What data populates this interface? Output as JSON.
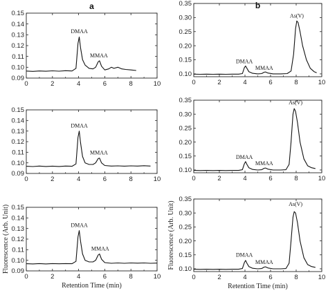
{
  "chart_data": [
    {
      "id": "a1",
      "type": "line",
      "column_label": "a",
      "xlabel": "",
      "ylabel": "",
      "xlim": [
        0,
        10
      ],
      "ylim": [
        0.09,
        0.15
      ],
      "xticks": [
        0,
        2,
        4,
        6,
        8,
        10
      ],
      "yticks": [
        0.09,
        0.1,
        0.11,
        0.12,
        0.13,
        0.14,
        0.15
      ],
      "ytick_labels": [
        "0.09",
        "0.10",
        "0.11",
        "0.12",
        "0.13",
        "0.14",
        "0.15"
      ],
      "series": [
        {
          "x": [
            0,
            0.5,
            1.0,
            1.5,
            2.0,
            2.5,
            3.0,
            3.5,
            3.8,
            3.95,
            4.05,
            4.15,
            4.3,
            4.5,
            4.8,
            5.1,
            5.3,
            5.5,
            5.6,
            5.75,
            6.0,
            6.3,
            6.5,
            6.7,
            7.0,
            7.3,
            7.6,
            8.0,
            8.4
          ],
          "y": [
            0.0965,
            0.0962,
            0.0966,
            0.0963,
            0.0967,
            0.0964,
            0.0968,
            0.0966,
            0.099,
            0.122,
            0.128,
            0.118,
            0.107,
            0.102,
            0.099,
            0.0985,
            0.1,
            0.105,
            0.106,
            0.101,
            0.0975,
            0.0985,
            0.1,
            0.099,
            0.1,
            0.0985,
            0.098,
            0.0975,
            0.097
          ]
        }
      ],
      "annotations": [
        {
          "text": "DMAA",
          "x": 4.05,
          "y": 0.1315
        },
        {
          "text": "MMAA",
          "x": 5.55,
          "y": 0.1093
        }
      ]
    },
    {
      "id": "a2",
      "type": "line",
      "column_label": "",
      "xlabel": "",
      "ylabel": "",
      "xlim": [
        0,
        10
      ],
      "ylim": [
        0.09,
        0.15
      ],
      "xticks": [
        0,
        2,
        4,
        6,
        8,
        10
      ],
      "yticks": [
        0.09,
        0.1,
        0.11,
        0.12,
        0.13,
        0.14,
        0.15
      ],
      "ytick_labels": [
        "0.09",
        "0.10",
        "0.11",
        "0.12",
        "0.13",
        "0.14",
        "0.15"
      ],
      "series": [
        {
          "x": [
            0,
            0.5,
            1.0,
            1.5,
            2.0,
            2.5,
            3.0,
            3.5,
            3.8,
            3.95,
            4.05,
            4.15,
            4.3,
            4.5,
            4.8,
            5.1,
            5.3,
            5.5,
            5.6,
            5.75,
            6.0,
            6.5,
            7.0,
            7.5,
            8.0,
            8.5,
            9.0,
            9.5
          ],
          "y": [
            0.0968,
            0.0965,
            0.097,
            0.0966,
            0.0969,
            0.0966,
            0.097,
            0.0968,
            0.099,
            0.124,
            0.13,
            0.119,
            0.106,
            0.1,
            0.0985,
            0.0985,
            0.1,
            0.104,
            0.1045,
            0.1,
            0.0975,
            0.097,
            0.0972,
            0.0969,
            0.0972,
            0.097,
            0.0973,
            0.097
          ]
        }
      ],
      "annotations": [
        {
          "text": "DMAA",
          "x": 4.05,
          "y": 0.1335
        },
        {
          "text": "MMAA",
          "x": 5.55,
          "y": 0.108
        }
      ]
    },
    {
      "id": "a3",
      "type": "line",
      "column_label": "",
      "xlabel": "Retention Time (min)",
      "ylabel": "Fluorescence (Arb. Unit)",
      "xlim": [
        0,
        10
      ],
      "ylim": [
        0.09,
        0.15
      ],
      "xticks": [
        0,
        2,
        4,
        6,
        8,
        10
      ],
      "yticks": [
        0.09,
        0.1,
        0.11,
        0.12,
        0.13,
        0.14,
        0.15
      ],
      "ytick_labels": [
        "0.09",
        "0.10",
        "0.11",
        "0.12",
        "0.13",
        "0.14",
        "0.15"
      ],
      "series": [
        {
          "x": [
            0,
            0.5,
            1.0,
            1.5,
            2.0,
            2.5,
            3.0,
            3.5,
            3.8,
            3.95,
            4.05,
            4.15,
            4.3,
            4.5,
            4.8,
            5.1,
            5.3,
            5.5,
            5.6,
            5.75,
            6.0,
            6.5,
            7.0,
            7.5,
            8.0,
            8.5,
            9.0,
            9.5,
            10.0
          ],
          "y": [
            0.0968,
            0.0966,
            0.0969,
            0.0966,
            0.0969,
            0.0967,
            0.0969,
            0.0968,
            0.099,
            0.122,
            0.128,
            0.118,
            0.106,
            0.1,
            0.0985,
            0.0985,
            0.1,
            0.105,
            0.106,
            0.101,
            0.0978,
            0.0972,
            0.0975,
            0.0972,
            0.0975,
            0.0973,
            0.0975,
            0.0972,
            0.0974
          ]
        }
      ],
      "annotations": [
        {
          "text": "DMAA",
          "x": 4.05,
          "y": 0.1315
        },
        {
          "text": "MMAA",
          "x": 5.65,
          "y": 0.1093
        }
      ]
    },
    {
      "id": "b1",
      "type": "line",
      "column_label": "b",
      "xlabel": "",
      "ylabel": "",
      "xlim": [
        0,
        10
      ],
      "ylim": [
        0.09,
        0.35
      ],
      "xticks": [
        0,
        2,
        4,
        6,
        8,
        10
      ],
      "yticks": [
        0.1,
        0.15,
        0.2,
        0.25,
        0.3,
        0.35
      ],
      "ytick_labels": [
        "0.10",
        "0.15",
        "0.20",
        "0.25",
        "0.30",
        "0.35"
      ],
      "series": [
        {
          "x": [
            0,
            0.5,
            1.0,
            1.5,
            2.0,
            2.5,
            3.0,
            3.5,
            3.8,
            3.95,
            4.05,
            4.15,
            4.3,
            4.6,
            5.0,
            5.3,
            5.5,
            5.6,
            5.8,
            6.2,
            6.8,
            7.3,
            7.6,
            7.8,
            7.95,
            8.05,
            8.15,
            8.3,
            8.5,
            8.8,
            9.1,
            9.4,
            9.6
          ],
          "y": [
            0.099,
            0.0985,
            0.099,
            0.0987,
            0.099,
            0.0987,
            0.099,
            0.099,
            0.101,
            0.122,
            0.128,
            0.12,
            0.108,
            0.102,
            0.1,
            0.101,
            0.106,
            0.107,
            0.103,
            0.1,
            0.1,
            0.101,
            0.11,
            0.17,
            0.26,
            0.288,
            0.282,
            0.25,
            0.2,
            0.15,
            0.12,
            0.108,
            0.104
          ]
        }
      ],
      "annotations": [
        {
          "text": "DMAA",
          "x": 3.95,
          "y": 0.138
        },
        {
          "text": "MMAA",
          "x": 5.5,
          "y": 0.115
        },
        {
          "text": "As(V)",
          "x": 8.05,
          "y": 0.3
        }
      ]
    },
    {
      "id": "b2",
      "type": "line",
      "column_label": "",
      "xlabel": "",
      "ylabel": "",
      "xlim": [
        0,
        10
      ],
      "ylim": [
        0.09,
        0.35
      ],
      "xticks": [
        0,
        2,
        4,
        6,
        8,
        10
      ],
      "yticks": [
        0.1,
        0.15,
        0.2,
        0.25,
        0.3,
        0.35
      ],
      "ytick_labels": [
        "0.10",
        "0.15",
        "0.20",
        "0.25",
        "0.30",
        "0.35"
      ],
      "series": [
        {
          "x": [
            0,
            0.5,
            1.0,
            1.5,
            2.0,
            2.5,
            3.0,
            3.5,
            3.8,
            3.95,
            4.05,
            4.15,
            4.3,
            4.6,
            5.0,
            5.3,
            5.5,
            5.6,
            5.8,
            6.2,
            6.8,
            7.2,
            7.45,
            7.6,
            7.75,
            7.85,
            7.95,
            8.1,
            8.3,
            8.6,
            8.9,
            9.2,
            9.5
          ],
          "y": [
            0.0985,
            0.098,
            0.0985,
            0.098,
            0.0985,
            0.098,
            0.0985,
            0.0985,
            0.101,
            0.122,
            0.13,
            0.12,
            0.108,
            0.102,
            0.1,
            0.101,
            0.106,
            0.107,
            0.103,
            0.1,
            0.1,
            0.101,
            0.12,
            0.2,
            0.3,
            0.32,
            0.31,
            0.27,
            0.2,
            0.14,
            0.115,
            0.108,
            0.105
          ]
        }
      ],
      "annotations": [
        {
          "text": "DMAA",
          "x": 3.95,
          "y": 0.14
        },
        {
          "text": "MMAA",
          "x": 5.5,
          "y": 0.117
        },
        {
          "text": "As(V)",
          "x": 7.95,
          "y": 0.335
        }
      ]
    },
    {
      "id": "b3",
      "type": "line",
      "column_label": "",
      "xlabel": "Retention Time (min)",
      "ylabel": "Fluorescence (Arb. Unit)",
      "xlim": [
        0,
        10
      ],
      "ylim": [
        0.09,
        0.35
      ],
      "xticks": [
        0,
        2,
        4,
        6,
        8,
        10
      ],
      "yticks": [
        0.1,
        0.15,
        0.2,
        0.25,
        0.3,
        0.35
      ],
      "ytick_labels": [
        "0.10",
        "0.15",
        "0.20",
        "0.25",
        "0.30",
        "0.35"
      ],
      "series": [
        {
          "x": [
            0,
            0.5,
            1.0,
            1.5,
            2.0,
            2.5,
            3.0,
            3.5,
            3.8,
            3.95,
            4.05,
            4.15,
            4.3,
            4.6,
            5.0,
            5.3,
            5.5,
            5.6,
            5.8,
            6.2,
            6.8,
            7.2,
            7.45,
            7.6,
            7.75,
            7.85,
            7.95,
            8.1,
            8.3,
            8.6,
            8.9,
            9.2,
            9.5
          ],
          "y": [
            0.0985,
            0.098,
            0.0985,
            0.098,
            0.0985,
            0.098,
            0.0985,
            0.0985,
            0.101,
            0.122,
            0.13,
            0.12,
            0.108,
            0.102,
            0.1,
            0.101,
            0.106,
            0.107,
            0.103,
            0.1,
            0.1,
            0.101,
            0.12,
            0.2,
            0.285,
            0.305,
            0.3,
            0.265,
            0.2,
            0.14,
            0.115,
            0.108,
            0.105
          ]
        }
      ],
      "annotations": [
        {
          "text": "DMAA",
          "x": 3.95,
          "y": 0.143
        },
        {
          "text": "MMAA",
          "x": 5.5,
          "y": 0.117
        },
        {
          "text": "As(V)",
          "x": 7.95,
          "y": 0.325
        }
      ]
    }
  ]
}
